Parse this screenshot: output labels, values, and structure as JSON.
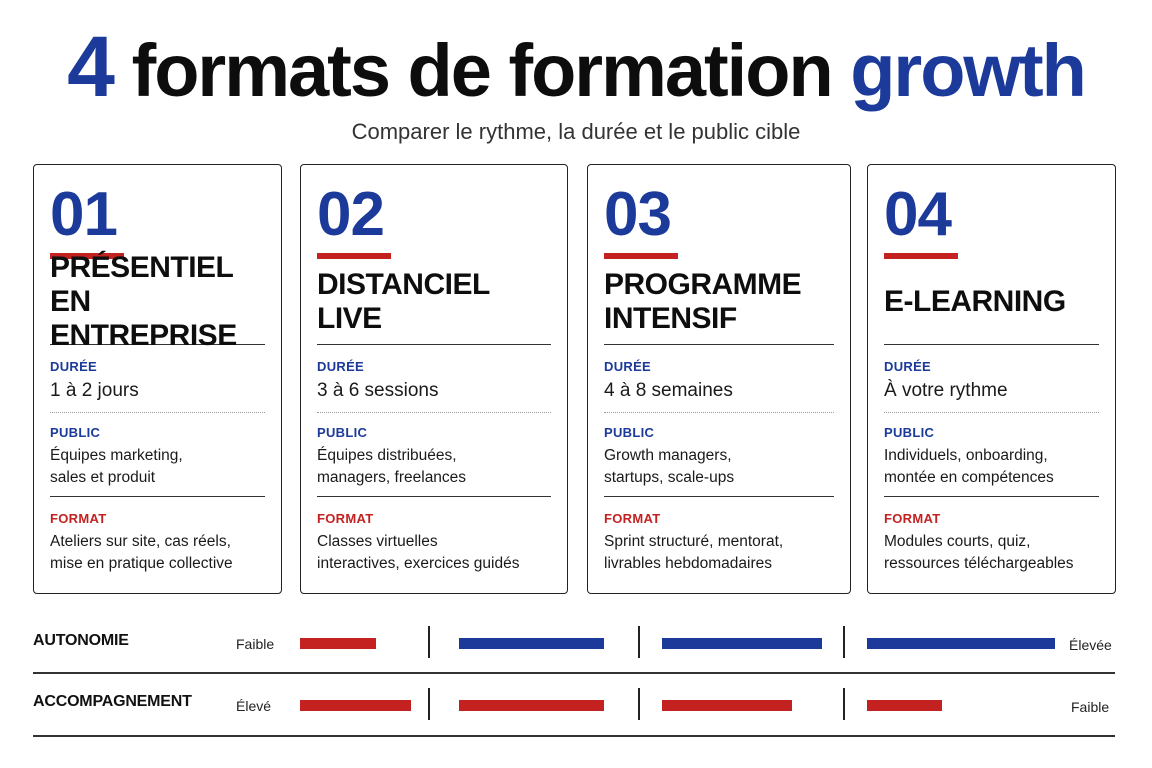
{
  "header": {
    "title_num": "4",
    "title_main": "formats de formation",
    "title_accent": "growth",
    "subtitle": "Comparer le rythme, la durée et le public cible"
  },
  "labels": {
    "duree": "DURÉE",
    "public": "PUBLIC",
    "format": "FORMAT"
  },
  "cards": [
    {
      "number": "01",
      "name_line1": "PRÉSENTIEL",
      "name_line2": "EN ENTREPRISE",
      "duree": "1 à 2 jours",
      "public_line1": "Équipes marketing,",
      "public_line2": "sales et produit",
      "format_line1": "Ateliers sur site, cas réels,",
      "format_line2": "mise en pratique collective"
    },
    {
      "number": "02",
      "name_line1": "DISTANCIEL LIVE",
      "name_line2": "",
      "duree": "3 à 6 sessions",
      "public_line1": "Équipes distribuées,",
      "public_line2": "managers, freelances",
      "format_line1": "Classes virtuelles",
      "format_line2": "interactives, exercices guidés"
    },
    {
      "number": "03",
      "name_line1": "PROGRAMME",
      "name_line2": "INTENSIF",
      "duree": "4 à 8 semaines",
      "public_line1": "Growth managers,",
      "public_line2": "startups, scale-ups",
      "format_line1": "Sprint structuré, mentorat,",
      "format_line2": "livrables hebdomadaires"
    },
    {
      "number": "04",
      "name_line1": "E-LEARNING",
      "name_line2": "",
      "duree": "À votre rythme",
      "public_line1": "Individuels, onboarding,",
      "public_line2": "montée en compétences",
      "format_line1": "Modules courts, quiz,",
      "format_line2": "ressources téléchargeables"
    }
  ],
  "comparison": {
    "autonomie": {
      "label": "AUTONOMIE",
      "low_label": "Faible",
      "high_label": "Élevée",
      "levels": [
        0.49,
        0.96,
        1.0,
        1.0
      ],
      "colors": [
        "#c42121",
        "#1b3a9a",
        "#1b3a9a",
        "#1b3a9a"
      ]
    },
    "accompagnement": {
      "label": "ACCOMPAGNEMENT",
      "low_label": "Élevé",
      "high_label": "Faible",
      "levels": [
        0.71,
        0.96,
        0.81,
        0.4
      ],
      "colors": [
        "#c42121",
        "#c42121",
        "#c42121",
        "#c42121"
      ]
    }
  },
  "colors": {
    "blue": "#1b3a9a",
    "red": "#c42121"
  }
}
